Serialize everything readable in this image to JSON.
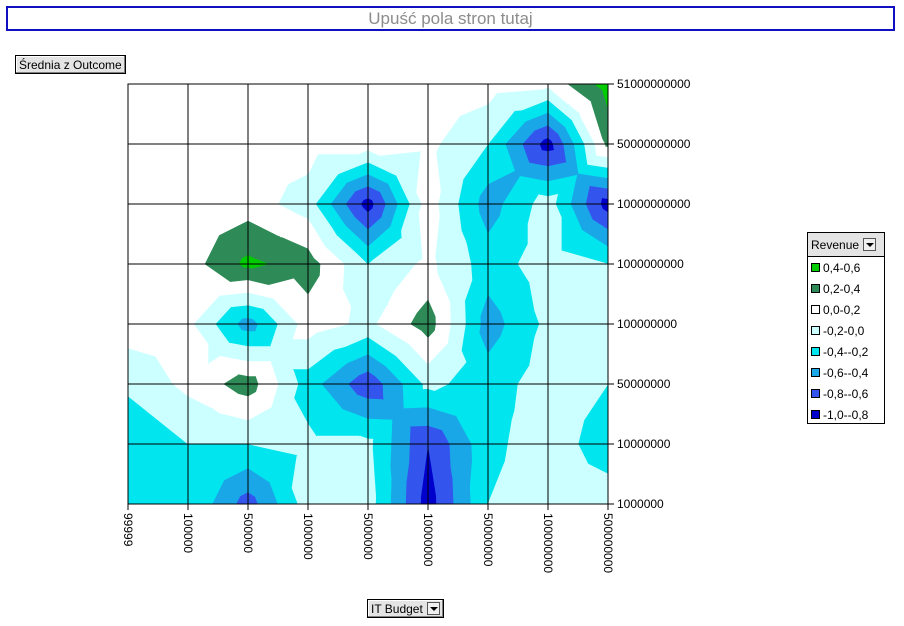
{
  "drop_zone": {
    "label": "Upuść pola stron tutaj"
  },
  "data_field": {
    "label": "Średnia z Outcome"
  },
  "x_field": {
    "label": "IT Budget"
  },
  "legend": {
    "title": "Revenue",
    "items": [
      {
        "label": "0,4-0,6",
        "color": "#00cc00"
      },
      {
        "label": "0,2-0,4",
        "color": "#2e8b57"
      },
      {
        "label": "0,0-0,2",
        "color": "#ffffff"
      },
      {
        "label": "-0,2-0,0",
        "color": "#ccffff"
      },
      {
        "label": "-0,4--0,2",
        "color": "#00e5ee"
      },
      {
        "label": "-0,6--0,4",
        "color": "#1aa7e8"
      },
      {
        "label": "-0,8--0,6",
        "color": "#3355ee"
      },
      {
        "label": "-1,0--0,8",
        "color": "#0000cc"
      }
    ]
  },
  "chart_data": {
    "type": "heatmap",
    "title": "",
    "xlabel": "IT Budget",
    "ylabel": "Revenue",
    "x_categories": [
      "99999",
      "100000",
      "500000",
      "1000000",
      "5000000",
      "10000000",
      "50000000",
      "100000000",
      "500000000"
    ],
    "y_categories": [
      "1000000",
      "10000000",
      "50000000",
      "100000000",
      "1000000000",
      "10000000000",
      "50000000000",
      "51000000000"
    ],
    "band_colors": [
      "#0000cc",
      "#3355ee",
      "#1aa7e8",
      "#00e5ee",
      "#ccffff",
      "#ffffff",
      "#2e8b57",
      "#00cc00"
    ],
    "band_bounds": [
      -1.0,
      -0.8,
      -0.6,
      -0.4,
      -0.2,
      0.0,
      0.2,
      0.4,
      0.6
    ],
    "grid": true,
    "values": [
      [
        -0.3,
        -0.2,
        -0.7,
        -0.1,
        -0.1,
        -0.9,
        -0.2,
        -0.1,
        -0.1
      ],
      [
        -0.4,
        -0.2,
        -0.2,
        -0.15,
        -0.15,
        -0.8,
        -0.25,
        -0.1,
        -0.3
      ],
      [
        -0.15,
        0.05,
        0.3,
        -0.3,
        -0.75,
        -0.15,
        -0.3,
        -0.1,
        -0.2
      ],
      [
        0.1,
        0.05,
        -0.5,
        0.1,
        -0.05,
        0.3,
        -0.5,
        -0.15,
        -0.1
      ],
      [
        0.1,
        0.1,
        0.45,
        0.3,
        -0.2,
        0.05,
        -0.3,
        -0.1,
        -0.2
      ],
      [
        0.1,
        0.1,
        0.1,
        -0.1,
        -0.9,
        0.1,
        -0.5,
        -0.1,
        -0.9
      ],
      [
        0.1,
        0.1,
        0.1,
        0.1,
        0.1,
        0.05,
        -0.2,
        -0.9,
        0.25
      ],
      [
        0.1,
        0.1,
        0.1,
        0.1,
        0.1,
        0.1,
        0.1,
        0.05,
        0.5
      ]
    ]
  }
}
